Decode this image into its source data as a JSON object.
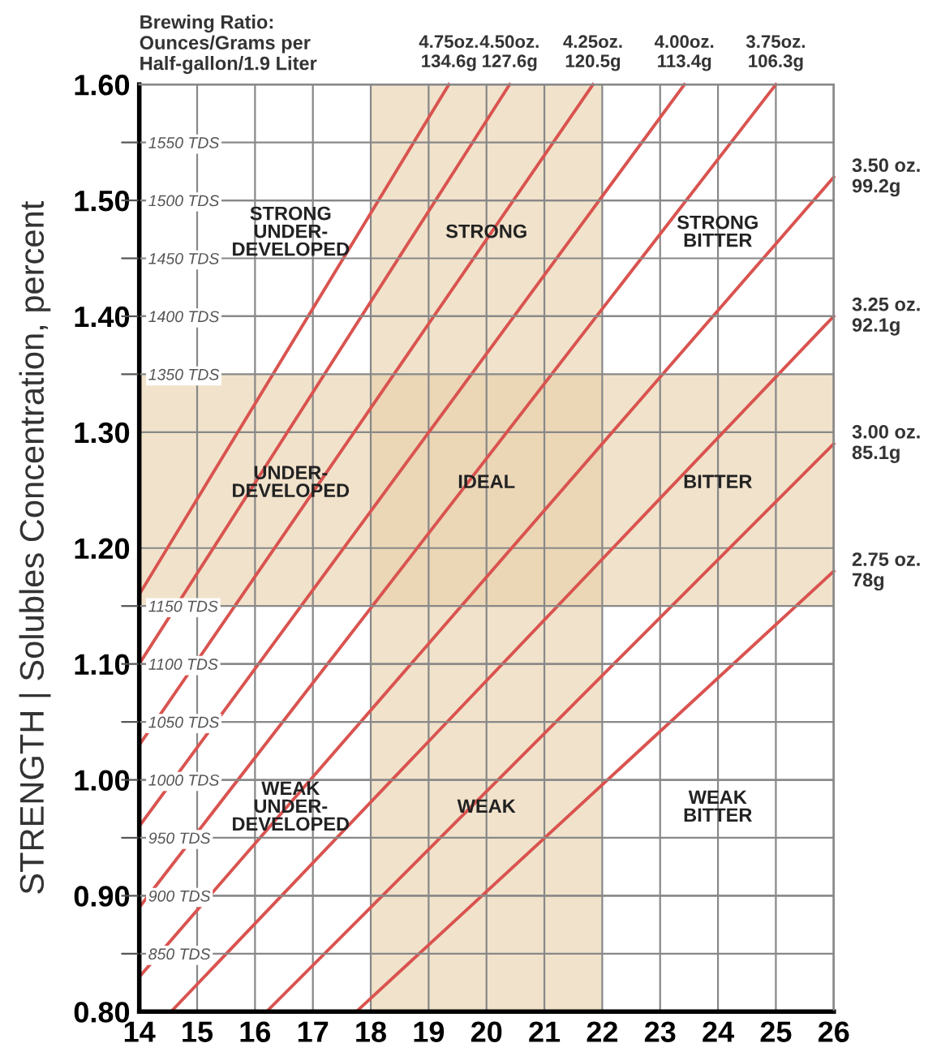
{
  "chart_data": {
    "type": "line",
    "ylabel": "STRENGTH | Solubles Concentration, percent",
    "xlim": [
      14,
      26
    ],
    "xticks": [
      14,
      15,
      16,
      17,
      18,
      19,
      20,
      21,
      22,
      23,
      24,
      25,
      26
    ],
    "ylim": [
      0.8,
      1.6
    ],
    "yticks": [
      {
        "value": 0.8,
        "label": "0.80"
      },
      {
        "value": 0.9,
        "label": "0.90"
      },
      {
        "value": 1.0,
        "label": "1.00"
      },
      {
        "value": 1.1,
        "label": "1.10"
      },
      {
        "value": 1.2,
        "label": "1.20"
      },
      {
        "value": 1.3,
        "label": "1.30"
      },
      {
        "value": 1.4,
        "label": "1.40"
      },
      {
        "value": 1.5,
        "label": "1.50"
      },
      {
        "value": 1.6,
        "label": "1.60"
      }
    ],
    "y2lim": [
      800,
      1600
    ],
    "y2ticks": [
      {
        "value": 850,
        "label": "850 TDS"
      },
      {
        "value": 900,
        "label": "900 TDS"
      },
      {
        "value": 950,
        "label": "950 TDS"
      },
      {
        "value": 1000,
        "label": "1000 TDS"
      },
      {
        "value": 1050,
        "label": "1050 TDS"
      },
      {
        "value": 1100,
        "label": "1100 TDS"
      },
      {
        "value": 1150,
        "label": "1150 TDS"
      },
      {
        "value": 1350,
        "label": "1350 TDS"
      },
      {
        "value": 1400,
        "label": "1400 TDS"
      },
      {
        "value": 1450,
        "label": "1450 TDS"
      },
      {
        "value": 1500,
        "label": "1500 TDS"
      },
      {
        "value": 1550,
        "label": "1550 TDS"
      }
    ],
    "grid": true,
    "marker": "none",
    "line_style": "solid",
    "series": [
      {
        "name": "4.75oz.\n134.6g",
        "color": "#d9534f",
        "x": [
          14,
          19.35
        ],
        "values": [
          1.16,
          1.6
        ]
      },
      {
        "name": "4.50oz.\n127.6g",
        "color": "#d9534f",
        "x": [
          14,
          20.4
        ],
        "values": [
          1.1,
          1.6
        ]
      },
      {
        "name": "4.25oz.\n120.5g",
        "color": "#d9534f",
        "x": [
          14,
          21.84
        ],
        "values": [
          1.03,
          1.6
        ]
      },
      {
        "name": "4.00oz.\n113.4g",
        "color": "#d9534f",
        "x": [
          14,
          23.42
        ],
        "values": [
          0.96,
          1.6
        ]
      },
      {
        "name": "3.75oz.\n106.3g",
        "color": "#d9534f",
        "x": [
          14,
          25.0
        ],
        "values": [
          0.89,
          1.6
        ]
      },
      {
        "name": "3.50 oz.\n99.2g",
        "color": "#d9534f",
        "x": [
          14,
          26
        ],
        "values": [
          0.83,
          1.52
        ]
      },
      {
        "name": "3.25 oz.\n92.1g",
        "color": "#d9534f",
        "x": [
          14.55,
          26
        ],
        "values": [
          0.8,
          1.4
        ]
      },
      {
        "name": "3.00 oz.\n85.1g",
        "color": "#d9534f",
        "x": [
          16.2,
          26
        ],
        "values": [
          0.8,
          1.29
        ]
      },
      {
        "name": "2.75 oz.\n78g",
        "color": "#d9534f",
        "x": [
          17.75,
          26
        ],
        "values": [
          0.8,
          1.18
        ]
      }
    ],
    "bands": [
      {
        "axis": "x",
        "from": 18,
        "to": 22,
        "color": "#e8cfa8"
      },
      {
        "axis": "y",
        "from": 1.15,
        "to": 1.35,
        "color": "#e8cfa8"
      }
    ],
    "annotations": [
      "Brewing Ratio:\nOunces/Grams per\nHalf-gallon/1.9 Liter",
      "STRONG\nUNDER-\nDEVELOPED",
      "STRONG",
      "STRONG\nBITTER",
      "UNDER-\nDEVELOPED",
      "IDEAL",
      "BITTER",
      "WEAK\nUNDER-\nDEVELOPED",
      "WEAK",
      "WEAK\nBITTER"
    ]
  }
}
